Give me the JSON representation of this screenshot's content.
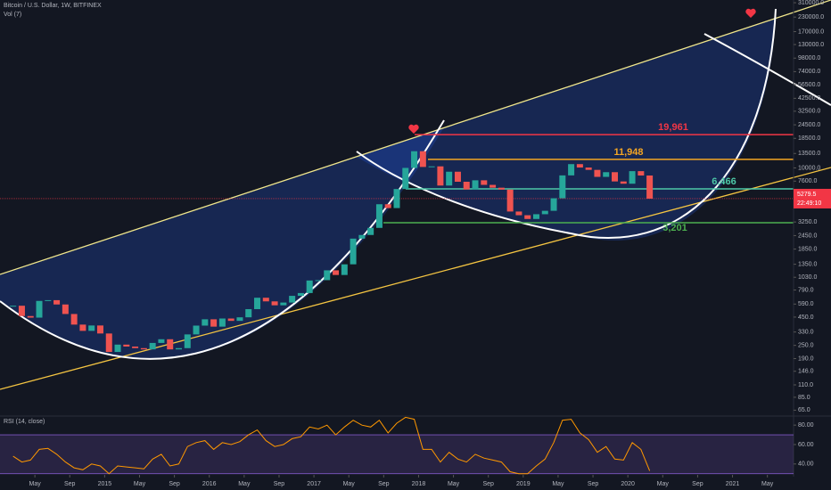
{
  "chart_data": {
    "type": "candlestick",
    "title": "Bitcoin / U.S. Dollar, 1W, BITFINEX",
    "volume_label": "Vol (7)",
    "log": true,
    "color_up": "#26a69a",
    "color_down": "#ef5350",
    "x": [
      "2014-02",
      "2014-03",
      "2014-04",
      "2014-05",
      "2014-06",
      "2014-07",
      "2014-08",
      "2014-09",
      "2014-10",
      "2014-11",
      "2014-12",
      "2015-01",
      "2015-02",
      "2015-03",
      "2015-04",
      "2015-05",
      "2015-06",
      "2015-07",
      "2015-08",
      "2015-09",
      "2015-10",
      "2015-11",
      "2015-12",
      "2016-01",
      "2016-02",
      "2016-03",
      "2016-04",
      "2016-05",
      "2016-06",
      "2016-07",
      "2016-08",
      "2016-09",
      "2016-10",
      "2016-11",
      "2016-12",
      "2017-01",
      "2017-02",
      "2017-03",
      "2017-04",
      "2017-05",
      "2017-06",
      "2017-07",
      "2017-08",
      "2017-09",
      "2017-10",
      "2017-11",
      "2017-12",
      "2018-01",
      "2018-02",
      "2018-03",
      "2018-04",
      "2018-05",
      "2018-06",
      "2018-07",
      "2018-08",
      "2018-09",
      "2018-10",
      "2018-11",
      "2018-12",
      "2019-01",
      "2019-02",
      "2019-03",
      "2019-04",
      "2019-05",
      "2019-06",
      "2019-07",
      "2019-08",
      "2019-09",
      "2019-10",
      "2019-11",
      "2019-12",
      "2020-01",
      "2020-02",
      "2020-03"
    ],
    "values": [
      570,
      460,
      445,
      630,
      640,
      585,
      480,
      385,
      338,
      378,
      320,
      218,
      254,
      244,
      236,
      230,
      263,
      284,
      230,
      236,
      314,
      377,
      430,
      369,
      437,
      416,
      448,
      531,
      673,
      624,
      575,
      609,
      700,
      742,
      963,
      970,
      1190,
      1080,
      1348,
      2300,
      2480,
      2875,
      4700,
      4340,
      6450,
      10000,
      14150,
      10200,
      10330,
      6930,
      9240,
      7500,
      6390,
      7730,
      7030,
      6630,
      6370,
      4040,
      3740,
      3460,
      3820,
      4100,
      5320,
      8560,
      10820,
      10080,
      9600,
      8300,
      9150,
      7550,
      7200,
      9350,
      8540,
      5279.5
    ],
    "xlim": [
      "2014-01",
      "2021-08"
    ],
    "xticks": [
      {
        "value": "2014-05",
        "label": "May"
      },
      {
        "value": "2014-09",
        "label": "Sep"
      },
      {
        "value": "2015-01",
        "label": "2015"
      },
      {
        "value": "2015-05",
        "label": "May"
      },
      {
        "value": "2015-09",
        "label": "Sep"
      },
      {
        "value": "2016-01",
        "label": "2016"
      },
      {
        "value": "2016-05",
        "label": "May"
      },
      {
        "value": "2016-09",
        "label": "Sep"
      },
      {
        "value": "2017-01",
        "label": "2017"
      },
      {
        "value": "2017-05",
        "label": "May"
      },
      {
        "value": "2017-09",
        "label": "Sep"
      },
      {
        "value": "2018-01",
        "label": "2018"
      },
      {
        "value": "2018-05",
        "label": "May"
      },
      {
        "value": "2018-09",
        "label": "Sep"
      },
      {
        "value": "2019-01",
        "label": "2019"
      },
      {
        "value": "2019-05",
        "label": "May"
      },
      {
        "value": "2019-09",
        "label": "Sep"
      },
      {
        "value": "2020-01",
        "label": "2020"
      },
      {
        "value": "2020-05",
        "label": "May"
      },
      {
        "value": "2020-09",
        "label": "Sep"
      },
      {
        "value": "2021-01",
        "label": "2021"
      },
      {
        "value": "2021-05",
        "label": "May"
      }
    ],
    "ylim": [
      58.6,
      328000
    ],
    "yticks": [
      {
        "value": 310000,
        "label": "310000.0"
      },
      {
        "value": 230000,
        "label": "230000.0"
      },
      {
        "value": 170000,
        "label": "170000.0"
      },
      {
        "value": 130000,
        "label": "130000.0"
      },
      {
        "value": 98000,
        "label": "98000.0"
      },
      {
        "value": 74000,
        "label": "74000.0"
      },
      {
        "value": 56500,
        "label": "56500.0"
      },
      {
        "value": 42500,
        "label": "42500.0"
      },
      {
        "value": 32500,
        "label": "32500.0"
      },
      {
        "value": 24500,
        "label": "24500.0"
      },
      {
        "value": 18500,
        "label": "18500.0"
      },
      {
        "value": 13500,
        "label": "13500.0"
      },
      {
        "value": 10000,
        "label": "10000.0"
      },
      {
        "value": 7600,
        "label": "7600.0"
      },
      {
        "value": 5850,
        "label": "5850.0"
      },
      {
        "value": 3250,
        "label": "3250.0"
      },
      {
        "value": 2450,
        "label": "2450.0"
      },
      {
        "value": 1850,
        "label": "1850.0"
      },
      {
        "value": 1350,
        "label": "1350.0"
      },
      {
        "value": 1030,
        "label": "1030.0"
      },
      {
        "value": 790,
        "label": "790.0"
      },
      {
        "value": 590,
        "label": "590.0"
      },
      {
        "value": 450,
        "label": "450.0"
      },
      {
        "value": 330,
        "label": "330.0"
      },
      {
        "value": 250,
        "label": "250.0"
      },
      {
        "value": 190,
        "label": "190.0"
      },
      {
        "value": 146,
        "label": "146.0"
      },
      {
        "value": 110,
        "label": "110.0"
      },
      {
        "value": 85,
        "label": "85.0"
      },
      {
        "value": 65,
        "label": "65.0"
      }
    ],
    "levels": [
      {
        "value": 19961,
        "label": "19,961",
        "color": "#f23645"
      },
      {
        "value": 11948,
        "label": "11,948",
        "color": "#f5a623"
      },
      {
        "value": 6466,
        "label": "6,466",
        "color": "#4dc9a8"
      },
      {
        "value": 3201,
        "label": "3,201",
        "color": "#4caf50"
      }
    ],
    "last": {
      "value": 5279.5,
      "countdown": "22:49:10",
      "color": "#f23645"
    },
    "rsi": {
      "label": "RSI (14, close)",
      "color": "#ff9800",
      "band_color": "#7e57c2",
      "values": [
        48,
        42,
        44,
        55,
        56,
        50,
        42,
        36,
        34,
        40,
        38,
        30,
        38,
        37,
        36,
        35,
        45,
        50,
        38,
        40,
        58,
        62,
        64,
        55,
        62,
        60,
        63,
        70,
        75,
        64,
        58,
        60,
        66,
        68,
        78,
        76,
        80,
        70,
        78,
        85,
        80,
        78,
        85,
        72,
        82,
        88,
        86,
        55,
        55,
        42,
        52,
        45,
        42,
        50,
        46,
        44,
        42,
        32,
        30,
        30,
        38,
        45,
        62,
        85,
        86,
        72,
        65,
        52,
        58,
        45,
        44,
        62,
        55,
        33
      ],
      "ylim": [
        28.8,
        88.4
      ],
      "yticks": [
        {
          "value": 80,
          "label": "80.00"
        },
        {
          "value": 60,
          "label": "60.00"
        },
        {
          "value": 40,
          "label": "40.00"
        }
      ],
      "band": [
        30,
        70
      ]
    }
  }
}
